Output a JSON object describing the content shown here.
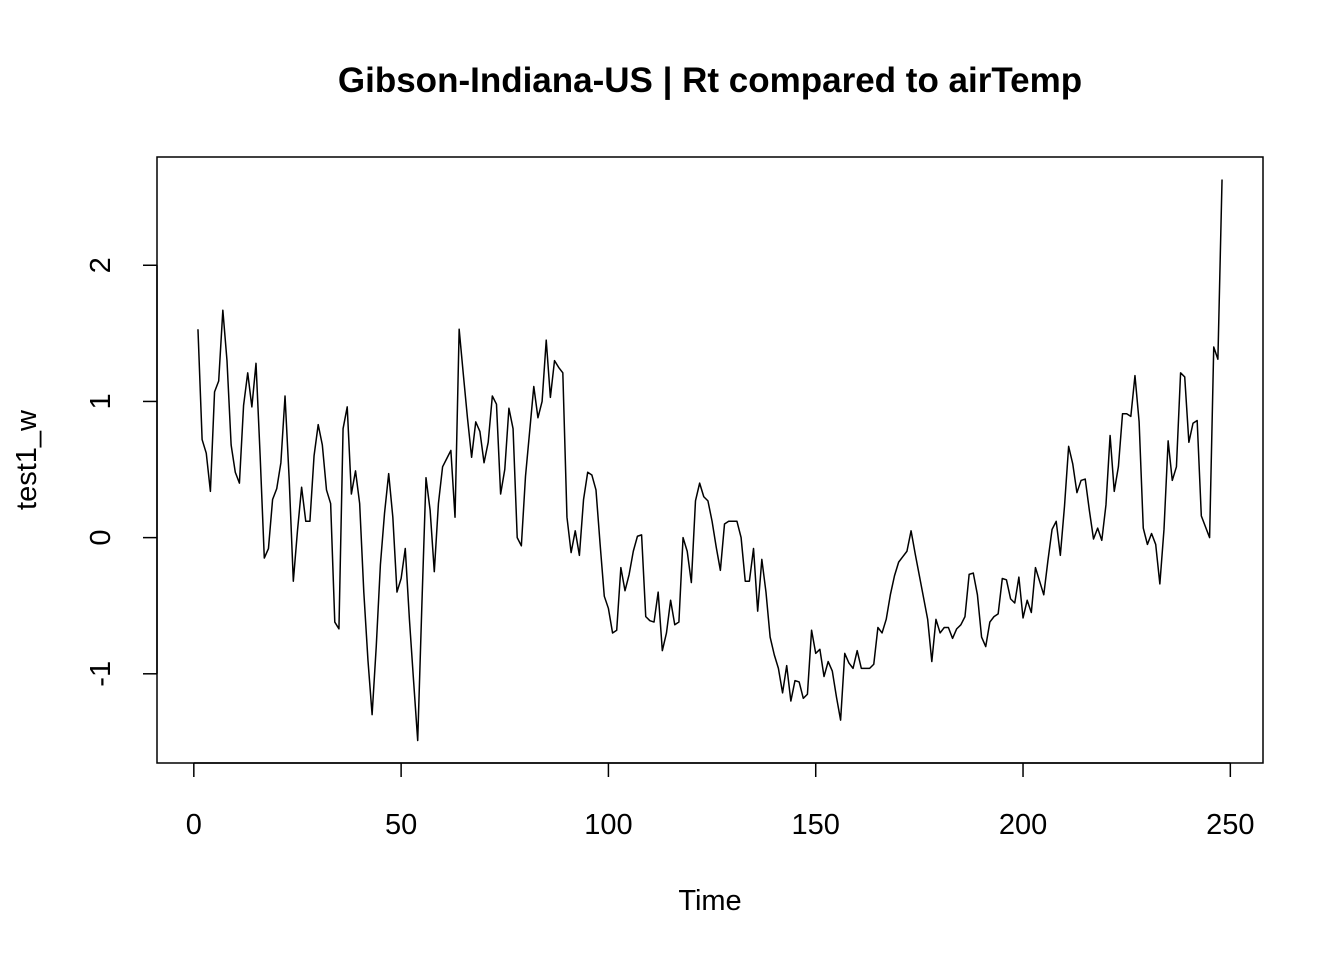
{
  "chart_data": {
    "type": "line",
    "title": "Gibson-Indiana-US | Rt compared to airTemp",
    "xlabel": "Time",
    "ylabel": "test1_w",
    "x": [
      1,
      2,
      3,
      4,
      5,
      6,
      7,
      8,
      9,
      10,
      11,
      12,
      13,
      14,
      15,
      16,
      17,
      18,
      19,
      20,
      21,
      22,
      23,
      24,
      25,
      26,
      27,
      28,
      29,
      30,
      31,
      32,
      33,
      34,
      35,
      36,
      37,
      38,
      39,
      40,
      41,
      42,
      43,
      44,
      45,
      46,
      47,
      48,
      49,
      50,
      51,
      52,
      53,
      54,
      55,
      56,
      57,
      58,
      59,
      60,
      61,
      62,
      63,
      64,
      65,
      66,
      67,
      68,
      69,
      70,
      71,
      72,
      73,
      74,
      75,
      76,
      77,
      78,
      79,
      80,
      81,
      82,
      83,
      84,
      85,
      86,
      87,
      88,
      89,
      90,
      91,
      92,
      93,
      94,
      95,
      96,
      97,
      98,
      99,
      100,
      101,
      102,
      103,
      104,
      105,
      106,
      107,
      108,
      109,
      110,
      111,
      112,
      113,
      114,
      115,
      116,
      117,
      118,
      119,
      120,
      121,
      122,
      123,
      124,
      125,
      126,
      127,
      128,
      129,
      130,
      131,
      132,
      133,
      134,
      135,
      136,
      137,
      138,
      139,
      140,
      141,
      142,
      143,
      144,
      145,
      146,
      147,
      148,
      149,
      150,
      151,
      152,
      153,
      154,
      155,
      156,
      157,
      158,
      159,
      160,
      161,
      162,
      163,
      164,
      165,
      166,
      167,
      168,
      169,
      170,
      171,
      172,
      173,
      174,
      175,
      176,
      177,
      178,
      179,
      180,
      181,
      182,
      183,
      184,
      185,
      186,
      187,
      188,
      189,
      190,
      191,
      192,
      193,
      194,
      195,
      196,
      197,
      198,
      199,
      200,
      201,
      202,
      203,
      204,
      205,
      206,
      207,
      208,
      209,
      210,
      211,
      212,
      213,
      214,
      215,
      216,
      217,
      218,
      219,
      220,
      221,
      222,
      223,
      224,
      225,
      226,
      227,
      228,
      229,
      230,
      231,
      232,
      233,
      234,
      235,
      236,
      237,
      238,
      239,
      240,
      241,
      242,
      243,
      244,
      245,
      246,
      247,
      248
    ],
    "series": [
      {
        "name": "test1_w",
        "color": "#000000",
        "values": [
          1.53,
          0.72,
          0.62,
          0.34,
          1.07,
          1.15,
          1.67,
          1.3,
          0.68,
          0.48,
          0.4,
          0.97,
          1.21,
          0.96,
          1.28,
          0.6,
          -0.15,
          -0.08,
          0.28,
          0.36,
          0.55,
          1.04,
          0.43,
          -0.32,
          0.05,
          0.37,
          0.12,
          0.12,
          0.6,
          0.83,
          0.68,
          0.35,
          0.25,
          -0.62,
          -0.67,
          0.8,
          0.96,
          0.32,
          0.49,
          0.25,
          -0.4,
          -0.9,
          -1.3,
          -0.8,
          -0.2,
          0.18,
          0.47,
          0.15,
          -0.4,
          -0.3,
          -0.08,
          -0.6,
          -1.05,
          -1.49,
          -0.5,
          0.44,
          0.2,
          -0.25,
          0.25,
          0.52,
          0.58,
          0.64,
          0.15,
          1.53,
          1.2,
          0.88,
          0.59,
          0.85,
          0.78,
          0.55,
          0.7,
          1.04,
          0.98,
          0.32,
          0.5,
          0.95,
          0.8,
          0.0,
          -0.06,
          0.45,
          0.78,
          1.11,
          0.88,
          1.0,
          1.45,
          1.03,
          1.3,
          1.25,
          1.21,
          0.15,
          -0.11,
          0.05,
          -0.13,
          0.28,
          0.48,
          0.46,
          0.35,
          -0.05,
          -0.43,
          -0.52,
          -0.7,
          -0.68,
          -0.22,
          -0.39,
          -0.27,
          -0.1,
          0.01,
          0.02,
          -0.58,
          -0.61,
          -0.62,
          -0.4,
          -0.83,
          -0.7,
          -0.46,
          -0.64,
          -0.62,
          0.0,
          -0.1,
          -0.33,
          0.27,
          0.4,
          0.3,
          0.27,
          0.12,
          -0.07,
          -0.24,
          0.1,
          0.12,
          0.12,
          0.12,
          0.0,
          -0.32,
          -0.32,
          -0.08,
          -0.54,
          -0.16,
          -0.4,
          -0.73,
          -0.86,
          -0.96,
          -1.14,
          -0.94,
          -1.2,
          -1.05,
          -1.06,
          -1.18,
          -1.15,
          -0.68,
          -0.85,
          -0.82,
          -1.02,
          -0.91,
          -0.98,
          -1.17,
          -1.34,
          -0.85,
          -0.92,
          -0.96,
          -0.83,
          -0.96,
          -0.96,
          -0.96,
          -0.93,
          -0.66,
          -0.7,
          -0.6,
          -0.42,
          -0.28,
          -0.18,
          -0.14,
          -0.1,
          0.05,
          -0.12,
          -0.28,
          -0.44,
          -0.6,
          -0.91,
          -0.6,
          -0.7,
          -0.66,
          -0.66,
          -0.74,
          -0.67,
          -0.64,
          -0.58,
          -0.27,
          -0.26,
          -0.42,
          -0.73,
          -0.8,
          -0.62,
          -0.58,
          -0.56,
          -0.3,
          -0.31,
          -0.45,
          -0.48,
          -0.29,
          -0.59,
          -0.46,
          -0.55,
          -0.22,
          -0.32,
          -0.42,
          -0.17,
          0.06,
          0.12,
          -0.13,
          0.23,
          0.67,
          0.54,
          0.33,
          0.42,
          0.43,
          0.2,
          -0.01,
          0.07,
          -0.02,
          0.24,
          0.75,
          0.34,
          0.52,
          0.91,
          0.91,
          0.89,
          1.19,
          0.85,
          0.07,
          -0.05,
          0.03,
          -0.05,
          -0.34,
          0.06,
          0.71,
          0.42,
          0.52,
          1.21,
          1.18,
          0.7,
          0.84,
          0.86,
          0.16,
          0.08,
          0.0,
          1.4,
          1.31,
          2.63
        ]
      }
    ],
    "xlim": [
      -8.88,
      257.88
    ],
    "ylim": [
      -1.655,
      2.795
    ],
    "xticks": [
      0,
      50,
      100,
      150,
      200,
      250
    ],
    "yticks": [
      -1,
      0,
      1,
      2
    ]
  }
}
